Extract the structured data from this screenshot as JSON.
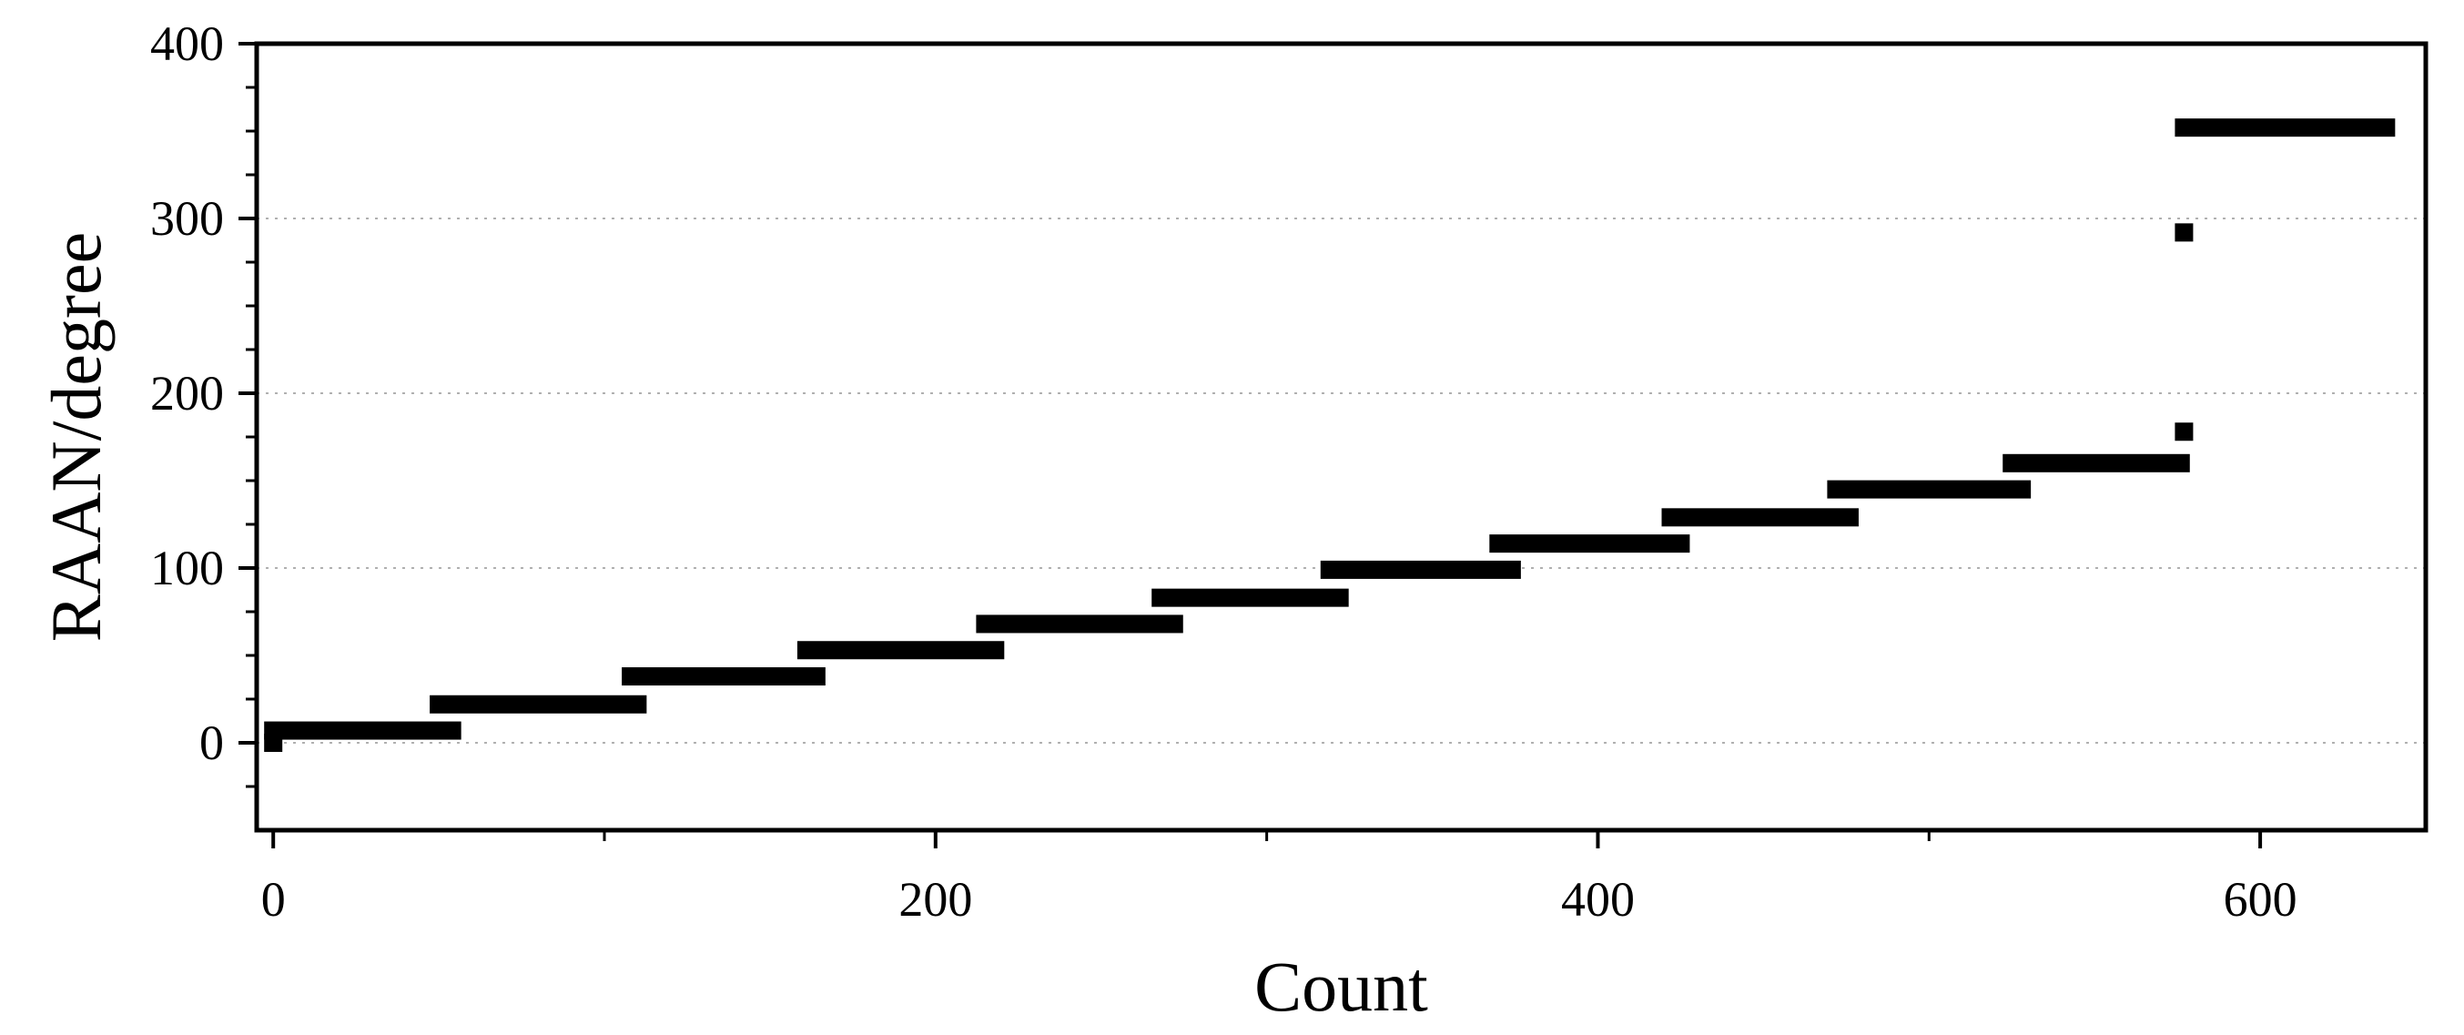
{
  "chart_data": {
    "type": "scatter",
    "title": "",
    "xlabel": "Count",
    "ylabel": "RAAN/degree",
    "xlim": [
      -5,
      650
    ],
    "ylim": [
      -50,
      400
    ],
    "x_ticks": [
      0,
      200,
      400,
      600
    ],
    "y_ticks": [
      0,
      100,
      200,
      300,
      400
    ],
    "x_minor_ticks": [
      100,
      300,
      500
    ],
    "y_minor_ticks": [
      -25,
      25,
      50,
      75,
      125,
      150,
      175,
      225,
      250,
      275,
      325,
      350,
      375
    ],
    "grid": "horizontal dotted",
    "legend": "none",
    "marker": "filled square",
    "marker_color": "#000000",
    "segments": [
      {
        "x": [
          0,
          54
        ],
        "y": 7
      },
      {
        "x": [
          50,
          110
        ],
        "y": 22
      },
      {
        "x": [
          108,
          164
        ],
        "y": 38
      },
      {
        "x": [
          161,
          218
        ],
        "y": 53
      },
      {
        "x": [
          215,
          272
        ],
        "y": 68
      },
      {
        "x": [
          268,
          322
        ],
        "y": 83
      },
      {
        "x": [
          319,
          374
        ],
        "y": 99
      },
      {
        "x": [
          370,
          425
        ],
        "y": 114
      },
      {
        "x": [
          422,
          476
        ],
        "y": 129
      },
      {
        "x": [
          472,
          528
        ],
        "y": 145
      },
      {
        "x": [
          525,
          576
        ],
        "y": 160
      },
      {
        "x": [
          577,
          638
        ],
        "y": 352
      }
    ],
    "points": [
      {
        "x": 0,
        "y": 0
      },
      {
        "x": 577,
        "y": 178
      },
      {
        "x": 577,
        "y": 292
      }
    ]
  }
}
